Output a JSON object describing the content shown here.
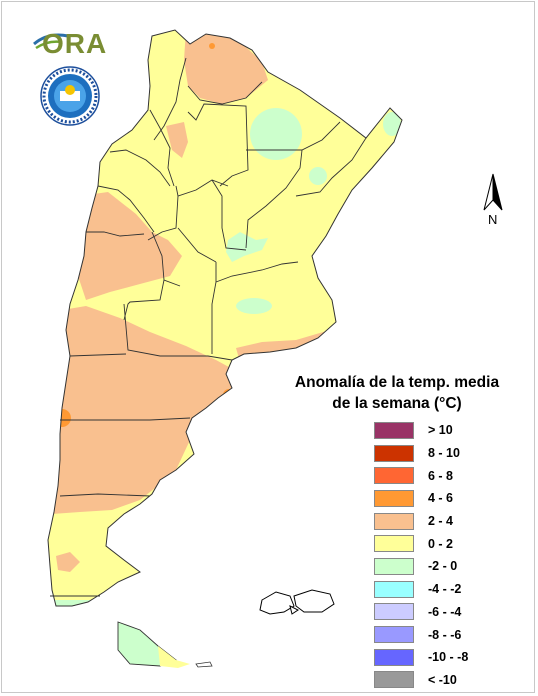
{
  "logo": {
    "ora_text": "ORA"
  },
  "north_arrow": {
    "label": "N"
  },
  "legend": {
    "title_line1": "Anomalía de la temp. media",
    "title_line2": "de la semana (°C)",
    "classes": [
      {
        "label": "> 10",
        "color": "#993366"
      },
      {
        "label": "8 - 10",
        "color": "#cc3300"
      },
      {
        "label": "6 - 8",
        "color": "#ff6633"
      },
      {
        "label": "4 - 6",
        "color": "#ff9933"
      },
      {
        "label": "2 - 4",
        "color": "#f9c08f"
      },
      {
        "label": "0 - 2",
        "color": "#ffff99"
      },
      {
        "label": "-2 - 0",
        "color": "#ccffcc"
      },
      {
        "label": "-4 - -2",
        "color": "#99ffff"
      },
      {
        "label": "-6 - -4",
        "color": "#ccccff"
      },
      {
        "label": "-8 - -6",
        "color": "#9999ff"
      },
      {
        "label": "-10 - -8",
        "color": "#6666ff"
      },
      {
        "label": "< -10",
        "color": "#999999"
      }
    ]
  },
  "map_colors": {
    "class_0_2": "#ffff99",
    "class_2_4": "#f9c08f",
    "class_4_6": "#ff9933",
    "class_m2_0": "#ccffcc",
    "border": "#333333"
  }
}
